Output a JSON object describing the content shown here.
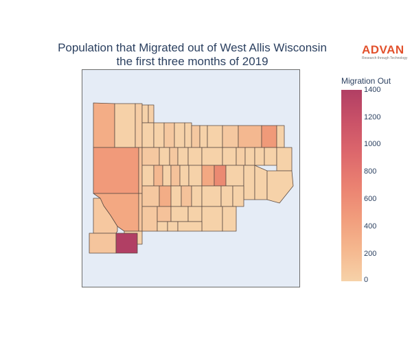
{
  "title_line1": "Population that Migrated out of West Allis Wisconsin",
  "title_line2": "the first three months of 2019",
  "logo": {
    "text": "ADVAN",
    "tagline": "Research through Technology",
    "color": "#e2502b"
  },
  "colorbar": {
    "title": "Migration Out",
    "min": 0,
    "max": 1400,
    "ticks": [
      "1400",
      "1200",
      "1000",
      "800",
      "600",
      "400",
      "200",
      "0"
    ],
    "colorscale": [
      "#f6d2a9",
      "#f5b78e",
      "#f19c7c",
      "#ea8171",
      "#dd686c",
      "#ca5268",
      "#b13f64"
    ]
  },
  "colors": {
    "map_background": "#e5ecf6",
    "region_border": "#5a4a42",
    "text": "#2a3f5f"
  }
}
